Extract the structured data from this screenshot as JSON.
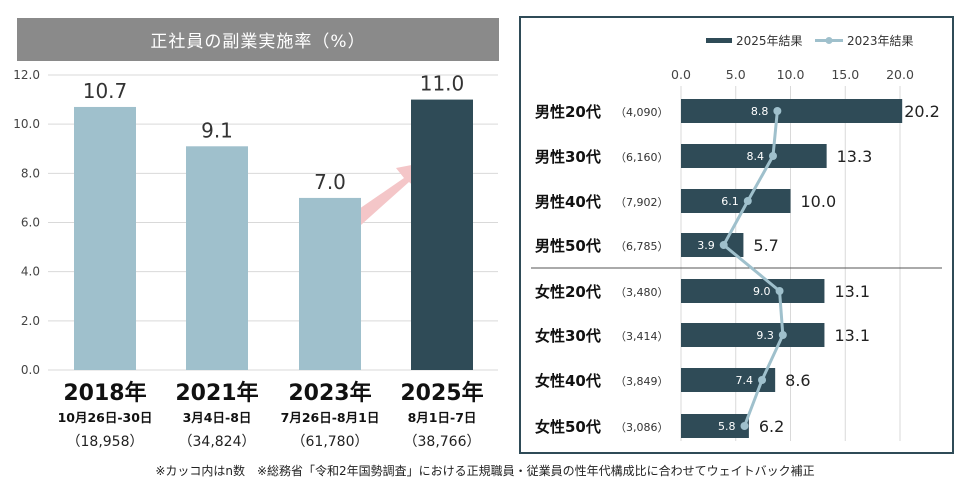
{
  "footnote": "※カッコ内はn数　※総務省「令和2年国勢調査」における正規職員・従業員の性年代構成比に合わせてウェイトバック補正",
  "colors": {
    "bar_light": "#9fc0cc",
    "bar_dark": "#2f4b57",
    "line_2023": "#9fc0cc",
    "arrow": "#f4c6c8",
    "title_bg": "#8a8a8a",
    "grid": "#d9d9d9"
  },
  "chart_data": [
    {
      "type": "bar",
      "title": "正社員の副業実施率（%）",
      "xlabel": "",
      "ylabel": "",
      "ylim": [
        0,
        12
      ],
      "yticks": [
        "0.0",
        "2.0",
        "4.0",
        "6.0",
        "8.0",
        "10.0",
        "12.0"
      ],
      "grid": true,
      "categories": [
        "2018年",
        "2021年",
        "2023年",
        "2025年"
      ],
      "periods": [
        "10月26日-30日",
        "3月4日-8日",
        "7月26日-8月1日",
        "8月1日-7日"
      ],
      "sample_sizes": [
        "（18,958）",
        "（34,824）",
        "（61,780）",
        "（38,766）"
      ],
      "values": [
        10.7,
        9.1,
        7.0,
        11.0
      ],
      "labels": [
        "10.7",
        "9.1",
        "7.0",
        "11.0"
      ],
      "highlight_index": 3,
      "annotation": "arrow from 2023 to 2025 indicating increase"
    },
    {
      "type": "bar",
      "orientation": "horizontal",
      "title": "",
      "legend": [
        "2025年結果",
        "2023年結果"
      ],
      "legend_position": "top-right",
      "xlim": [
        0,
        20
      ],
      "xticks": [
        "0.0",
        "5.0",
        "10.0",
        "15.0",
        "20.0"
      ],
      "grid": true,
      "categories": [
        "男性20代",
        "男性30代",
        "男性40代",
        "男性50代",
        "女性20代",
        "女性30代",
        "女性40代",
        "女性50代"
      ],
      "sample_sizes": [
        "（4,090）",
        "（6,160）",
        "（7,902）",
        "（6,785）",
        "（3,480）",
        "（3,414）",
        "（3,849）",
        "（3,086）"
      ],
      "series": [
        {
          "name": "2025年結果",
          "type": "bar",
          "values": [
            20.2,
            13.3,
            10.0,
            5.7,
            13.1,
            13.1,
            8.6,
            6.2
          ],
          "labels": [
            "20.2",
            "13.3",
            "10.0",
            "5.7",
            "13.1",
            "13.1",
            "8.6",
            "6.2"
          ]
        },
        {
          "name": "2023年結果",
          "type": "line",
          "values": [
            8.8,
            8.4,
            6.1,
            3.9,
            9.0,
            9.3,
            7.4,
            5.8
          ],
          "labels": [
            "8.8",
            "8.4",
            "6.1",
            "3.9",
            "9.0",
            "9.3",
            "7.4",
            "5.8"
          ]
        }
      ]
    }
  ]
}
